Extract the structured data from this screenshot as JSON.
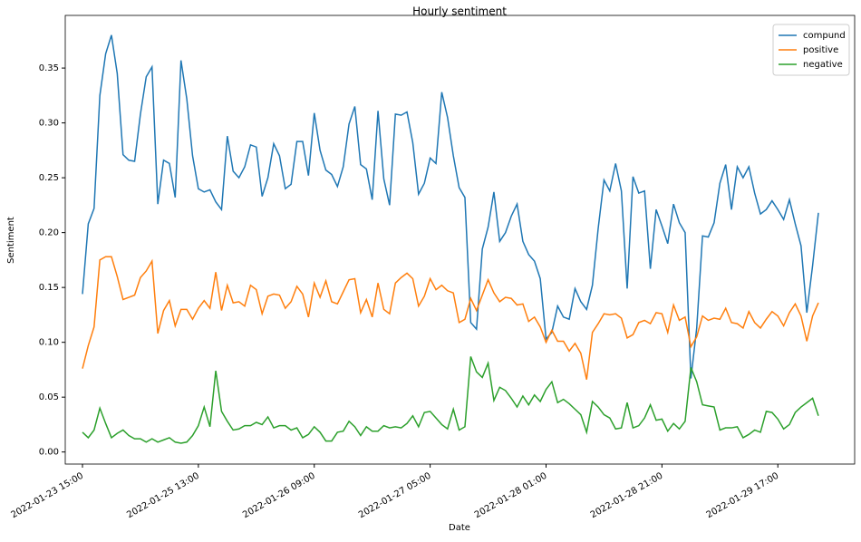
{
  "chart_data": {
    "type": "line",
    "title": "Hourly sentiment",
    "xlabel": "Date",
    "ylabel": "Sentiment",
    "categories": [
      "2022-01-23 15:00",
      null,
      null,
      null,
      null,
      null,
      null,
      null,
      null,
      null,
      null,
      null,
      null,
      null,
      null,
      null,
      null,
      null,
      null,
      null,
      "2022-01-25 13:00",
      null,
      null,
      null,
      null,
      null,
      null,
      null,
      null,
      null,
      null,
      null,
      null,
      null,
      null,
      null,
      null,
      null,
      null,
      null,
      "2022-01-26 09:00",
      null,
      null,
      null,
      null,
      null,
      null,
      null,
      null,
      null,
      null,
      null,
      null,
      null,
      null,
      null,
      null,
      null,
      null,
      null,
      "2022-01-27 05:00",
      null,
      null,
      null,
      null,
      null,
      null,
      null,
      null,
      null,
      null,
      null,
      null,
      null,
      null,
      null,
      null,
      null,
      null,
      null,
      "2022-01-28 01:00",
      null,
      null,
      null,
      null,
      null,
      null,
      null,
      null,
      null,
      null,
      null,
      null,
      null,
      null,
      null,
      null,
      null,
      null,
      null,
      "2022-01-28 21:00",
      null,
      null,
      null,
      null,
      null,
      null,
      null,
      null,
      null,
      null,
      null,
      null,
      null,
      null,
      null,
      null,
      null,
      null,
      null,
      "2022-01-29 17:00",
      null,
      null,
      null,
      null,
      null,
      null,
      null
    ],
    "series": [
      {
        "name": "compund",
        "color": "#1f77b4",
        "values": [
          0.144,
          0.208,
          0.222,
          0.325,
          0.363,
          0.38,
          0.345,
          0.271,
          0.266,
          0.265,
          0.308,
          0.342,
          0.351,
          0.226,
          0.266,
          0.263,
          0.232,
          0.357,
          0.322,
          0.27,
          0.24,
          0.237,
          0.239,
          0.228,
          0.221,
          0.288,
          0.256,
          0.25,
          0.26,
          0.28,
          0.278,
          0.233,
          0.25,
          0.281,
          0.27,
          0.24,
          0.244,
          0.283,
          0.283,
          0.252,
          0.309,
          0.275,
          0.257,
          0.253,
          0.242,
          0.26,
          0.299,
          0.315,
          0.262,
          0.258,
          0.23,
          0.311,
          0.249,
          0.225,
          0.308,
          0.307,
          0.31,
          0.282,
          0.235,
          0.245,
          0.268,
          0.263,
          0.328,
          0.305,
          0.27,
          0.241,
          0.232,
          0.118,
          0.112,
          0.185,
          0.205,
          0.237,
          0.192,
          0.2,
          0.215,
          0.226,
          0.192,
          0.18,
          0.174,
          0.158,
          0.103,
          0.109,
          0.133,
          0.123,
          0.121,
          0.149,
          0.137,
          0.13,
          0.152,
          0.204,
          0.248,
          0.238,
          0.263,
          0.238,
          0.149,
          0.251,
          0.236,
          0.238,
          0.167,
          0.221,
          0.206,
          0.19,
          0.226,
          0.209,
          0.2,
          0.067,
          0.113,
          0.197,
          0.196,
          0.209,
          0.245,
          0.262,
          0.221,
          0.26,
          0.25,
          0.26,
          0.236,
          0.217,
          0.221,
          0.229,
          0.221,
          0.212,
          0.23,
          0.208,
          0.188,
          0.127,
          0.17,
          0.218
        ]
      },
      {
        "name": "positive",
        "color": "#ff7f0e",
        "values": [
          0.076,
          0.097,
          0.114,
          0.175,
          0.178,
          0.178,
          0.16,
          0.139,
          0.141,
          0.143,
          0.159,
          0.165,
          0.174,
          0.108,
          0.129,
          0.138,
          0.115,
          0.13,
          0.13,
          0.121,
          0.131,
          0.138,
          0.131,
          0.164,
          0.129,
          0.152,
          0.136,
          0.137,
          0.133,
          0.152,
          0.148,
          0.126,
          0.142,
          0.144,
          0.143,
          0.131,
          0.137,
          0.151,
          0.144,
          0.123,
          0.154,
          0.141,
          0.156,
          0.137,
          0.135,
          0.146,
          0.157,
          0.158,
          0.127,
          0.139,
          0.123,
          0.154,
          0.13,
          0.126,
          0.154,
          0.159,
          0.163,
          0.158,
          0.133,
          0.142,
          0.158,
          0.148,
          0.152,
          0.147,
          0.145,
          0.118,
          0.121,
          0.14,
          0.129,
          0.143,
          0.157,
          0.145,
          0.137,
          0.141,
          0.14,
          0.134,
          0.135,
          0.119,
          0.123,
          0.114,
          0.1,
          0.111,
          0.101,
          0.101,
          0.092,
          0.099,
          0.09,
          0.066,
          0.109,
          0.117,
          0.126,
          0.125,
          0.126,
          0.122,
          0.104,
          0.107,
          0.118,
          0.12,
          0.117,
          0.127,
          0.126,
          0.109,
          0.134,
          0.12,
          0.123,
          0.096,
          0.105,
          0.124,
          0.12,
          0.122,
          0.121,
          0.131,
          0.118,
          0.117,
          0.113,
          0.128,
          0.118,
          0.113,
          0.121,
          0.128,
          0.124,
          0.115,
          0.127,
          0.135,
          0.124,
          0.101,
          0.124,
          0.136
        ]
      },
      {
        "name": "negative",
        "color": "#2ca02c",
        "values": [
          0.018,
          0.013,
          0.02,
          0.04,
          0.026,
          0.013,
          0.017,
          0.02,
          0.015,
          0.012,
          0.012,
          0.009,
          0.012,
          0.009,
          0.011,
          0.013,
          0.009,
          0.008,
          0.009,
          0.015,
          0.024,
          0.041,
          0.023,
          0.074,
          0.037,
          0.028,
          0.02,
          0.021,
          0.024,
          0.024,
          0.027,
          0.025,
          0.032,
          0.022,
          0.024,
          0.024,
          0.02,
          0.022,
          0.013,
          0.016,
          0.023,
          0.018,
          0.01,
          0.01,
          0.018,
          0.019,
          0.028,
          0.023,
          0.015,
          0.023,
          0.019,
          0.019,
          0.024,
          0.022,
          0.023,
          0.022,
          0.026,
          0.033,
          0.023,
          0.036,
          0.037,
          0.031,
          0.025,
          0.021,
          0.039,
          0.02,
          0.023,
          0.087,
          0.073,
          0.068,
          0.081,
          0.047,
          0.059,
          0.056,
          0.049,
          0.041,
          0.051,
          0.043,
          0.052,
          0.046,
          0.057,
          0.064,
          0.045,
          0.048,
          0.044,
          0.039,
          0.034,
          0.018,
          0.046,
          0.041,
          0.034,
          0.031,
          0.021,
          0.022,
          0.045,
          0.022,
          0.024,
          0.031,
          0.043,
          0.029,
          0.03,
          0.019,
          0.026,
          0.021,
          0.028,
          0.077,
          0.064,
          0.043,
          0.042,
          0.041,
          0.02,
          0.022,
          0.022,
          0.023,
          0.013,
          0.016,
          0.02,
          0.018,
          0.037,
          0.036,
          0.03,
          0.021,
          0.025,
          0.036,
          0.041,
          0.045,
          0.049,
          0.033
        ]
      }
    ],
    "ylim": [
      -0.011,
      0.398
    ],
    "yticks": [
      {
        "value": 0,
        "label": "0.00"
      },
      {
        "value": 0.05,
        "label": "0.05"
      },
      {
        "value": 0.1,
        "label": "0.10"
      },
      {
        "value": 0.15,
        "label": "0.15"
      },
      {
        "value": 0.2,
        "label": "0.20"
      },
      {
        "value": 0.25,
        "label": "0.25"
      },
      {
        "value": 0.3,
        "label": "0.30"
      },
      {
        "value": 0.35,
        "label": "0.35"
      }
    ],
    "grid": false,
    "legend": "upper right"
  }
}
